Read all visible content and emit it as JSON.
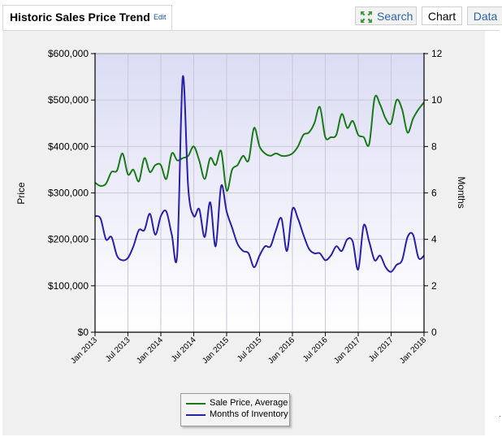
{
  "header": {
    "title": "Historic Sales Price Trend",
    "edit_label": "Edit",
    "tabs": {
      "search": "Search",
      "chart": "Chart",
      "data": "Data"
    },
    "search_icon": "expand-arrows-icon"
  },
  "colors": {
    "sale_price": "#1a7a1a",
    "inventory": "#2a1fa8",
    "plot_top": "#dcdcf5",
    "plot_bottom": "#ffffff",
    "grid": "#c8c8d8"
  },
  "chart_data": {
    "type": "line",
    "title": "Historic Sales Price Trend",
    "ylabel": "Price",
    "y2label": "Months",
    "ylim": [
      0,
      600000
    ],
    "y2lim": [
      0,
      12
    ],
    "y_ticks": [
      "$0",
      "$100,000",
      "$200,000",
      "$300,000",
      "$400,000",
      "$500,000",
      "$600,000"
    ],
    "y2_ticks": [
      "0",
      "2",
      "4",
      "6",
      "8",
      "10",
      "12"
    ],
    "x_ticks": [
      "Jan 2013",
      "Jul 2013",
      "Jan 2014",
      "Jul 2014",
      "Jan 2015",
      "Jul 2015",
      "Jan 2016",
      "Jul 2016",
      "Jan 2017",
      "Jul 2017",
      "Jan 2018"
    ],
    "x_range_months": [
      0,
      60
    ],
    "legend": [
      "Sale Price, Average",
      "Months of Inventory"
    ],
    "legend_position": "bottom-center",
    "series": [
      {
        "name": "Sale Price, Average",
        "axis": "left",
        "values": [
          322000,
          315000,
          320000,
          345000,
          348000,
          385000,
          340000,
          350000,
          325000,
          375000,
          345000,
          360000,
          360000,
          330000,
          385000,
          370000,
          375000,
          380000,
          400000,
          370000,
          330000,
          375000,
          360000,
          390000,
          305000,
          350000,
          360000,
          380000,
          370000,
          440000,
          400000,
          385000,
          380000,
          385000,
          380000,
          380000,
          385000,
          400000,
          425000,
          430000,
          450000,
          485000,
          420000,
          420000,
          425000,
          470000,
          440000,
          455000,
          425000,
          420000,
          405000,
          505000,
          490000,
          460000,
          450000,
          500000,
          480000,
          430000,
          460000,
          480000,
          495000
        ]
      },
      {
        "name": "Months of Inventory",
        "axis": "right",
        "values": [
          5.0,
          4.9,
          4.0,
          4.1,
          3.3,
          3.1,
          3.2,
          3.7,
          4.4,
          4.4,
          5.1,
          4.2,
          5.0,
          5.2,
          4.2,
          3.4,
          11.0,
          6.2,
          5.0,
          5.3,
          4.1,
          5.6,
          3.7,
          6.3,
          5.2,
          4.5,
          3.8,
          3.5,
          3.4,
          2.8,
          3.3,
          3.7,
          3.7,
          4.4,
          4.9,
          3.5,
          5.3,
          4.9,
          4.2,
          3.6,
          3.4,
          3.4,
          3.1,
          3.3,
          3.7,
          3.5,
          4.0,
          3.9,
          2.7,
          4.6,
          3.9,
          3.1,
          3.3,
          2.8,
          2.6,
          2.9,
          3.1,
          4.1,
          4.2,
          3.2,
          3.3
        ]
      }
    ]
  }
}
